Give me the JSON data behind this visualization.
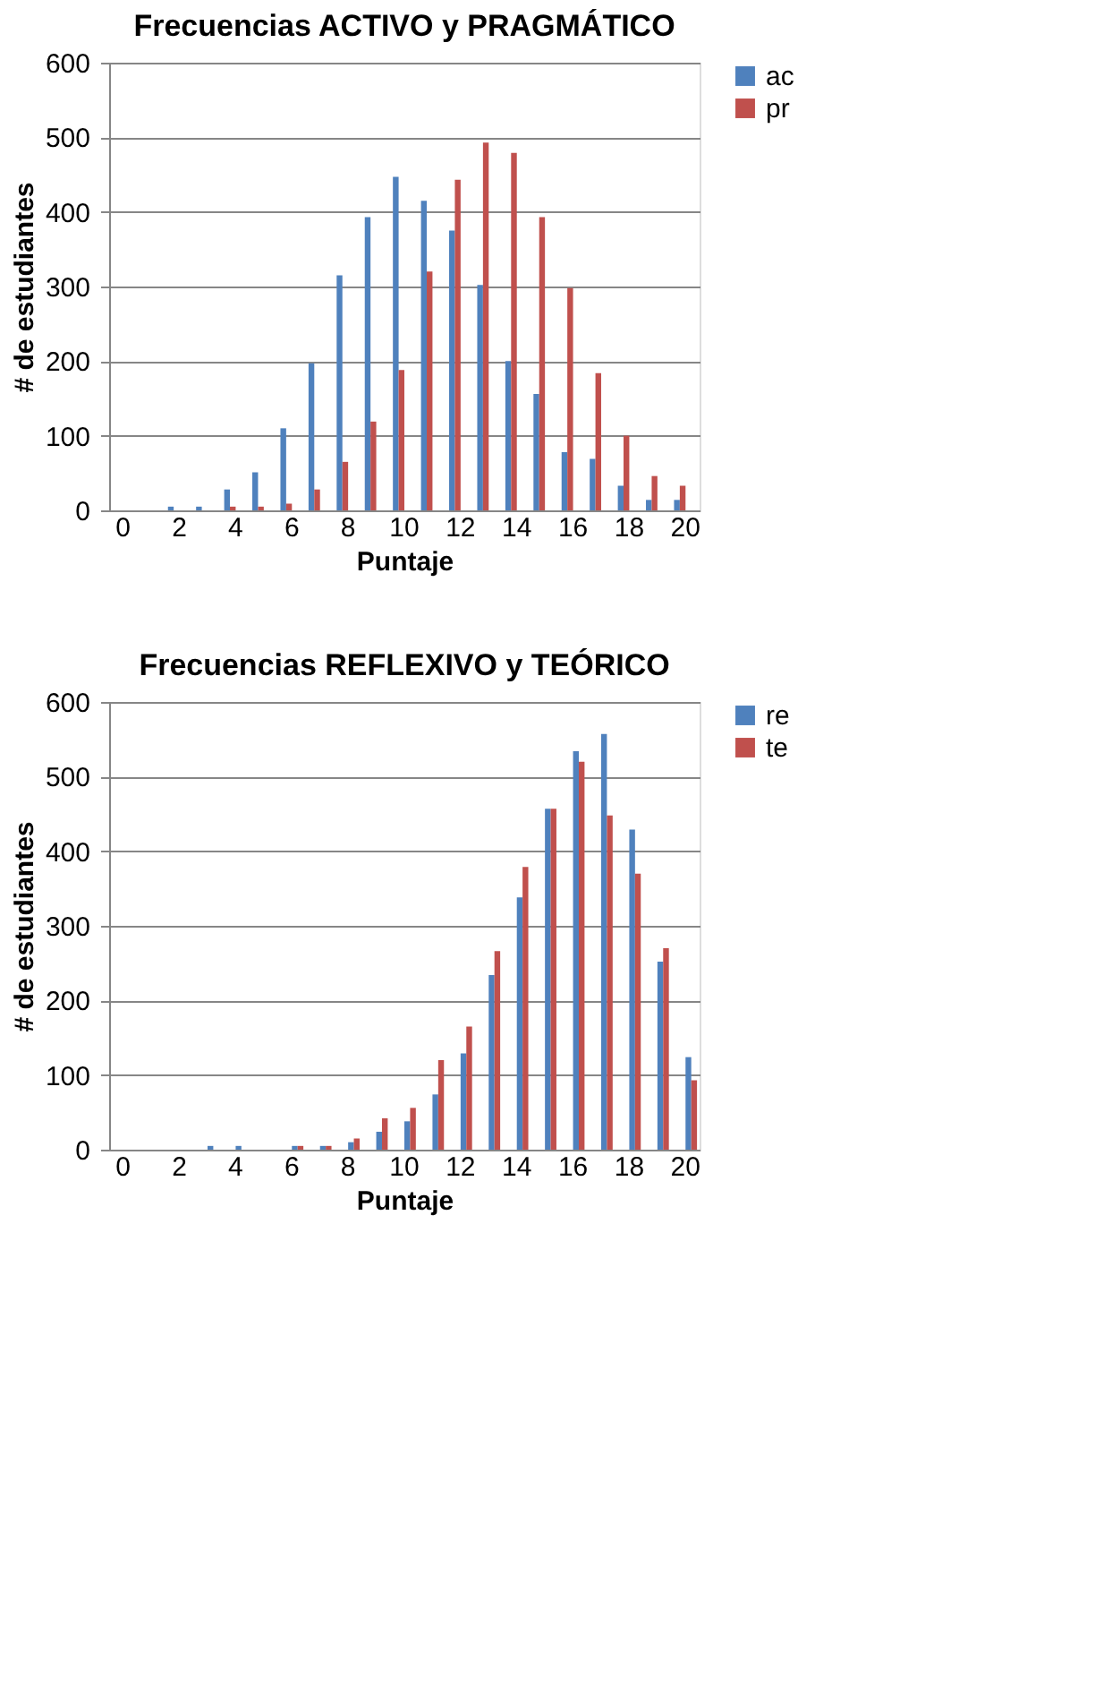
{
  "chart_data": [
    {
      "type": "bar",
      "title": "Frecuencias ACTIVO y PRAGMÁTICO",
      "xlabel": "Puntaje",
      "ylabel": "# de estudiantes",
      "categories": [
        "0",
        null,
        "2",
        null,
        "4",
        null,
        "6",
        null,
        "8",
        null,
        "10",
        null,
        "12",
        null,
        "14",
        null,
        "16",
        null,
        "18",
        null,
        "20"
      ],
      "ylim": [
        0,
        600
      ],
      "yticks": [
        0,
        100,
        200,
        300,
        400,
        500,
        600
      ],
      "grid": "y",
      "legend": "right",
      "series": [
        {
          "name": "ac",
          "color": "#4f81bd",
          "values": [
            0,
            0,
            5,
            5,
            28,
            51,
            110,
            197,
            315,
            393,
            447,
            415,
            375,
            302,
            200,
            156,
            78,
            69,
            33,
            14,
            14
          ]
        },
        {
          "name": "pr",
          "color": "#c0504d",
          "values": [
            0,
            0,
            0,
            0,
            5,
            5,
            9,
            28,
            65,
            119,
            188,
            320,
            443,
            493,
            479,
            393,
            298,
            184,
            100,
            46,
            33
          ]
        }
      ]
    },
    {
      "type": "bar",
      "title": "Frecuencias REFLEXIVO y TEÓRICO",
      "xlabel": "Puntaje",
      "ylabel": "# de estudiantes",
      "categories": [
        "0",
        null,
        "2",
        null,
        "4",
        null,
        "6",
        null,
        "8",
        null,
        "10",
        null,
        "12",
        null,
        "14",
        null,
        "16",
        null,
        "18",
        null,
        "20"
      ],
      "ylim": [
        0,
        600
      ],
      "yticks": [
        0,
        100,
        200,
        300,
        400,
        500,
        600
      ],
      "grid": "y",
      "legend": "right",
      "series": [
        {
          "name": "re",
          "color": "#4f81bd",
          "values": [
            0,
            0,
            0,
            5,
            5,
            0,
            5,
            5,
            10,
            24,
            38,
            74,
            129,
            234,
            338,
            457,
            534,
            557,
            429,
            252,
            124
          ]
        },
        {
          "name": "te",
          "color": "#c0504d",
          "values": [
            0,
            0,
            0,
            0,
            0,
            0,
            5,
            5,
            15,
            42,
            56,
            120,
            165,
            266,
            379,
            457,
            520,
            448,
            370,
            270,
            93
          ]
        }
      ]
    }
  ]
}
